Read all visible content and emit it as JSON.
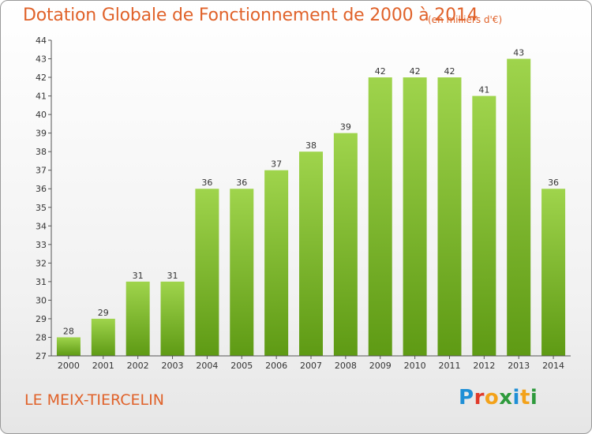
{
  "header": {
    "title": "Dotation Globale de Fonctionnement de 2000 à 2014",
    "unit": "(en milliers d'€)"
  },
  "footer": {
    "commune": "LE MEIX-TIERCELIN",
    "logo": [
      "P",
      "r",
      "o",
      "x",
      "i",
      "t",
      "i"
    ]
  },
  "colors": {
    "accent": "#e0622a",
    "bar_top": "#9fd44c",
    "bar_bottom": "#5e9a14",
    "logo": [
      "#1f8fd6",
      "#e03a2a",
      "#f3a21a",
      "#2e9a3c",
      "#1f8fd6",
      "#f3a21a",
      "#2e9a3c"
    ]
  },
  "chart_data": {
    "type": "bar",
    "title": "Dotation Globale de Fonctionnement de 2000 à 2014",
    "subtitle": "(en milliers d'€)",
    "categories": [
      "2000",
      "2001",
      "2002",
      "2003",
      "2004",
      "2005",
      "2006",
      "2007",
      "2008",
      "2009",
      "2010",
      "2011",
      "2012",
      "2013",
      "2014"
    ],
    "values": [
      28,
      29,
      31,
      31,
      36,
      36,
      37,
      38,
      39,
      42,
      42,
      42,
      41,
      43,
      36
    ],
    "ylim": [
      27,
      44
    ],
    "yticks": [
      27,
      28,
      29,
      30,
      31,
      32,
      33,
      34,
      35,
      36,
      37,
      38,
      39,
      40,
      41,
      42,
      43,
      44
    ],
    "grid": false,
    "xlabel": "",
    "ylabel": ""
  }
}
